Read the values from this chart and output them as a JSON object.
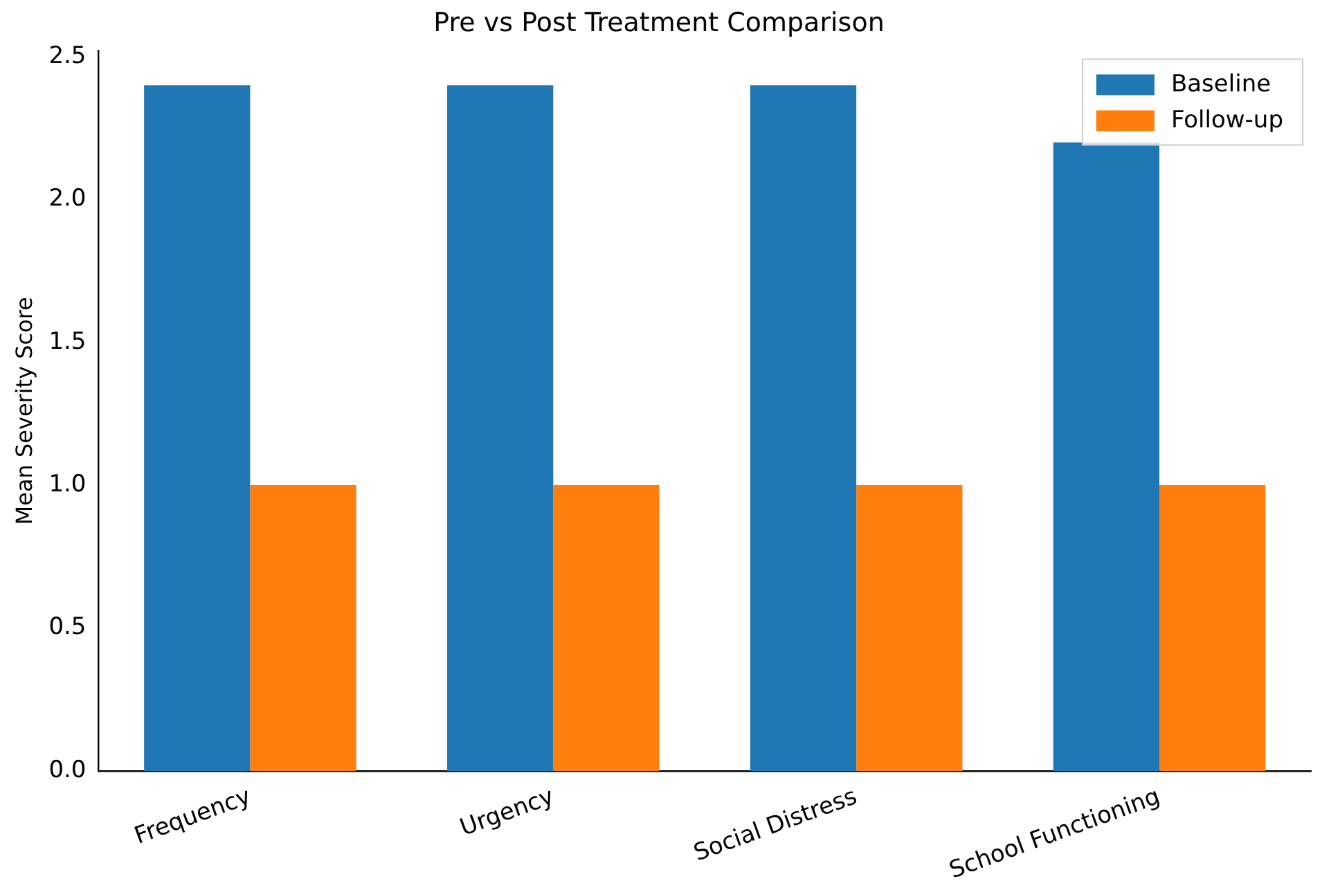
{
  "chart_data": {
    "type": "bar",
    "title": "Pre vs Post Treatment Comparison",
    "ylabel": "Mean Severity Score",
    "categories": [
      "Frequency",
      "Urgency",
      "Social Distress",
      "School Functioning"
    ],
    "series": [
      {
        "name": "Baseline",
        "color": "#1f77b4",
        "values": [
          2.4,
          2.4,
          2.4,
          2.2
        ]
      },
      {
        "name": "Follow-up",
        "color": "#ff7f0e",
        "values": [
          1.0,
          1.0,
          1.0,
          1.0
        ]
      }
    ],
    "ylim": [
      0,
      2.52
    ],
    "yticks": [
      {
        "value": 0,
        "label": "0.0"
      },
      0.5,
      {
        "value": 1,
        "label": "1.0"
      },
      1.5,
      {
        "value": 2,
        "label": "2.0"
      },
      2.5
    ],
    "grid": false,
    "legend": "top right"
  }
}
